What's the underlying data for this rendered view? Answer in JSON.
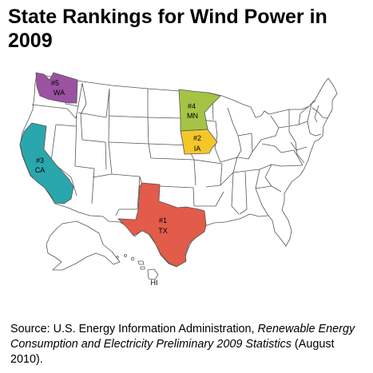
{
  "title": "State Rankings for Wind Power in 2009",
  "colors": {
    "rank1": "#e35b49",
    "rank2": "#f3c72a",
    "rank3": "#2aa7ad",
    "rank4": "#a5c446",
    "rank5": "#9b52a0",
    "other": "#ffffff",
    "outline": "#555555"
  },
  "rankings": [
    {
      "state": "TX",
      "rank_label": "#1",
      "rank": 1
    },
    {
      "state": "IA",
      "rank_label": "#2",
      "rank": 2
    },
    {
      "state": "CA",
      "rank_label": "#3",
      "rank": 3
    },
    {
      "state": "MN",
      "rank_label": "#4",
      "rank": 4
    },
    {
      "state": "WA",
      "rank_label": "#5",
      "rank": 5
    }
  ],
  "inset_label": "HI",
  "source": {
    "prefix": "Source: U.S. Energy Information Administration,",
    "title_italic": "Renewable Energy Consumption and Electricity Preliminary 2009 Statistics",
    "suffix": "(August 2010)."
  }
}
